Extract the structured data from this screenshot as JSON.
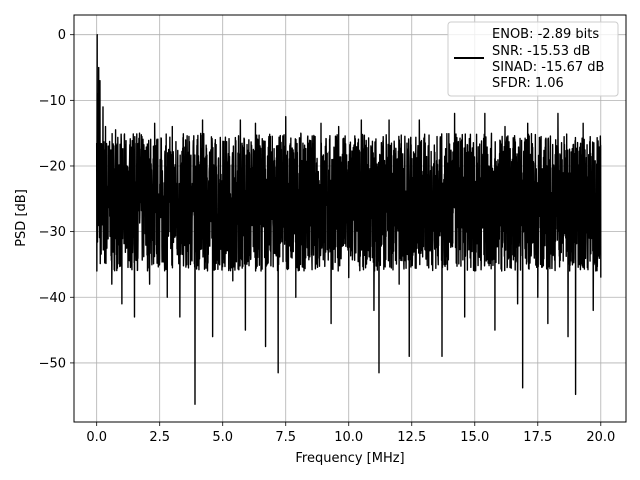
{
  "chart_data": {
    "type": "line",
    "title": "",
    "xlabel": "Frequency [MHz]",
    "ylabel": "PSD [dB]",
    "xlim": [
      -0.9,
      21.0
    ],
    "ylim": [
      -59.0,
      3.0
    ],
    "x_ticks": [
      0.0,
      2.5,
      5.0,
      7.5,
      10.0,
      12.5,
      15.0,
      17.5,
      20.0
    ],
    "x_tick_labels": [
      "0.0",
      "2.5",
      "5.0",
      "7.5",
      "10.0",
      "12.5",
      "15.0",
      "17.5",
      "20.0"
    ],
    "y_ticks": [
      0,
      -10,
      -20,
      -30,
      -40,
      -50
    ],
    "y_tick_labels": [
      "0",
      "−10",
      "−20",
      "−30",
      "−40",
      "−50"
    ],
    "grid": true,
    "legend_position": "top-right",
    "legend_lines": [
      "ENOB: -2.89 bits",
      "SNR: -15.53 dB",
      "SINAD: -15.67 dB",
      "SFDR: 1.06"
    ],
    "series": [
      {
        "color": "#000000",
        "noise_band": [
          -36,
          -15
        ],
        "x": [
          0.0,
          0.02,
          0.05,
          0.08,
          0.1,
          0.13,
          0.16,
          0.2,
          0.25,
          0.3,
          0.35,
          0.5,
          0.6,
          0.75,
          0.85,
          1.0,
          1.2,
          1.5,
          1.7,
          2.1,
          2.3,
          2.6,
          2.8,
          3.0,
          3.3,
          3.6,
          3.9,
          4.2,
          4.6,
          5.0,
          5.4,
          5.7,
          5.9,
          6.3,
          6.7,
          6.9,
          7.2,
          7.5,
          7.9,
          8.4,
          8.9,
          9.3,
          9.6,
          10.0,
          10.5,
          11.0,
          11.2,
          11.6,
          12.0,
          12.4,
          12.8,
          13.3,
          13.7,
          14.2,
          14.6,
          15.0,
          15.4,
          15.8,
          16.2,
          16.7,
          16.9,
          17.1,
          17.5,
          17.9,
          18.3,
          18.7,
          19.0,
          19.3,
          19.7,
          20.0
        ],
        "y": [
          -16.5,
          0.0,
          -9.0,
          -5.0,
          -13.5,
          -7.0,
          -20.0,
          -29.0,
          -11.0,
          -27.0,
          -14.0,
          -22.0,
          -38.0,
          -14.5,
          -30.0,
          -41.0,
          -20.0,
          -43.0,
          -15.0,
          -38.0,
          -13.5,
          -32.0,
          -40.0,
          -14.0,
          -43.0,
          -33.0,
          -56.3,
          -13.0,
          -46.0,
          -27.0,
          -37.5,
          -13.0,
          -45.0,
          -13.5,
          -47.5,
          -33.0,
          -51.5,
          -12.5,
          -40.0,
          -29.0,
          -13.5,
          -44.0,
          -14.0,
          -37.0,
          -13.0,
          -42.0,
          -51.5,
          -13.0,
          -38.0,
          -49.0,
          -13.0,
          -31.0,
          -49.0,
          -12.0,
          -43.0,
          -36.0,
          -12.0,
          -45.0,
          -14.0,
          -41.0,
          -53.8,
          -13.5,
          -40.0,
          -44.0,
          -12.0,
          -46.0,
          -54.8,
          -13.5,
          -42.0,
          -37.0
        ]
      }
    ]
  }
}
